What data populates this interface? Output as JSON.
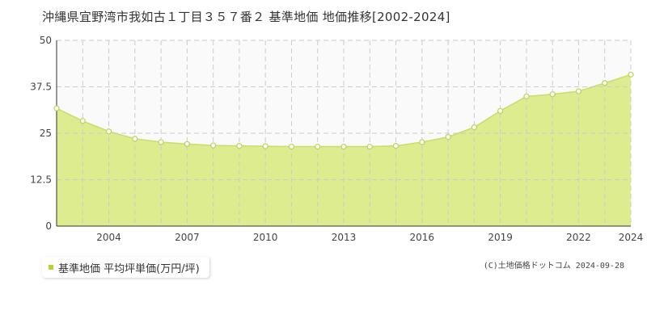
{
  "chart_data": {
    "type": "area",
    "title": "沖縄県宜野湾市我如古１丁目３５７番２ 基準地価 地価推移[2002-2024]",
    "x": [
      2002,
      2003,
      2004,
      2005,
      2006,
      2007,
      2008,
      2009,
      2010,
      2011,
      2012,
      2013,
      2014,
      2015,
      2016,
      2017,
      2018,
      2019,
      2020,
      2021,
      2022,
      2023,
      2024
    ],
    "series": [
      {
        "name": "基準地価 平均坪単価(万円/坪)",
        "values": [
          31.7,
          28.3,
          25.5,
          23.5,
          22.6,
          22.1,
          21.7,
          21.6,
          21.5,
          21.4,
          21.4,
          21.4,
          21.4,
          21.6,
          22.6,
          24.0,
          26.6,
          31.0,
          34.9,
          35.5,
          36.3,
          38.5,
          40.8
        ]
      }
    ],
    "xticks": [
      "2004",
      "2007",
      "2010",
      "2013",
      "2016",
      "2019",
      "2022",
      "2024"
    ],
    "yticks": [
      "0",
      "12.5",
      "25",
      "37.5",
      "50"
    ],
    "ylim": [
      0,
      50
    ],
    "xlim": [
      2002,
      2024
    ],
    "grid": true,
    "legend_position": "bottom-left"
  },
  "copyright": "(C)土地価格ドットコム 2024-09-28",
  "colors": {
    "fill": "#dcec8e",
    "line": "#c6df6a",
    "marker_fill": "#ffffff",
    "marker_stroke": "#b9d45a",
    "grid": "#cccccc",
    "plot_bg": "#fafafa",
    "legend_swatch": "#b5d33a"
  }
}
